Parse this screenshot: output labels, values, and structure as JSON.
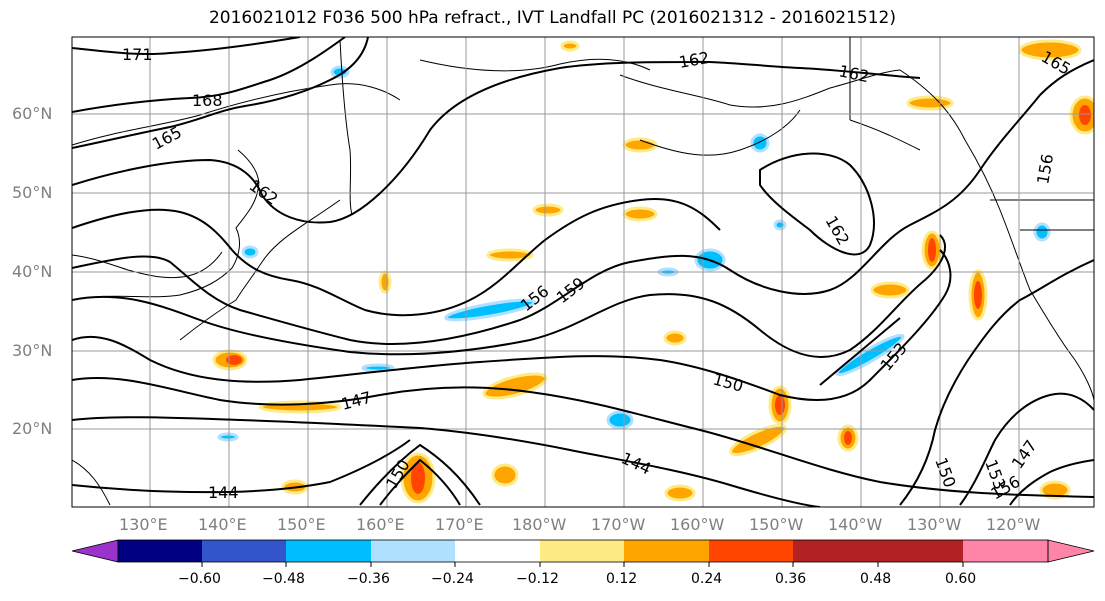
{
  "title": "2016021012 F036 500 hPa refract., IVT Landfall PC (2016021312 - 2016021512)",
  "map": {
    "lat_labels": [
      "60°N",
      "50°N",
      "40°N",
      "30°N",
      "20°N"
    ],
    "lon_labels": [
      "130°E",
      "140°E",
      "150°E",
      "160°E",
      "170°E",
      "180°W",
      "170°W",
      "160°W",
      "150°W",
      "140°W",
      "130°W",
      "120°W"
    ],
    "contour_labels": [
      "171",
      "168",
      "165",
      "162",
      "162",
      "162",
      "165",
      "156",
      "162",
      "159",
      "156",
      "153",
      "150",
      "147",
      "144",
      "144",
      "150",
      "153",
      "156",
      "147",
      "150"
    ]
  },
  "colorbar": {
    "colors": [
      "#9933cc",
      "#000080",
      "#3355cc",
      "#00bfff",
      "#b0e0ff",
      "#ffffff",
      "#ffeb85",
      "#ffa500",
      "#ff4500",
      "#b22222",
      "#ff85a8"
    ],
    "tick_labels": [
      "−0.60",
      "−0.48",
      "−0.36",
      "−0.24",
      "−0.12",
      "0.12",
      "0.24",
      "0.36",
      "0.48",
      "0.60"
    ]
  }
}
